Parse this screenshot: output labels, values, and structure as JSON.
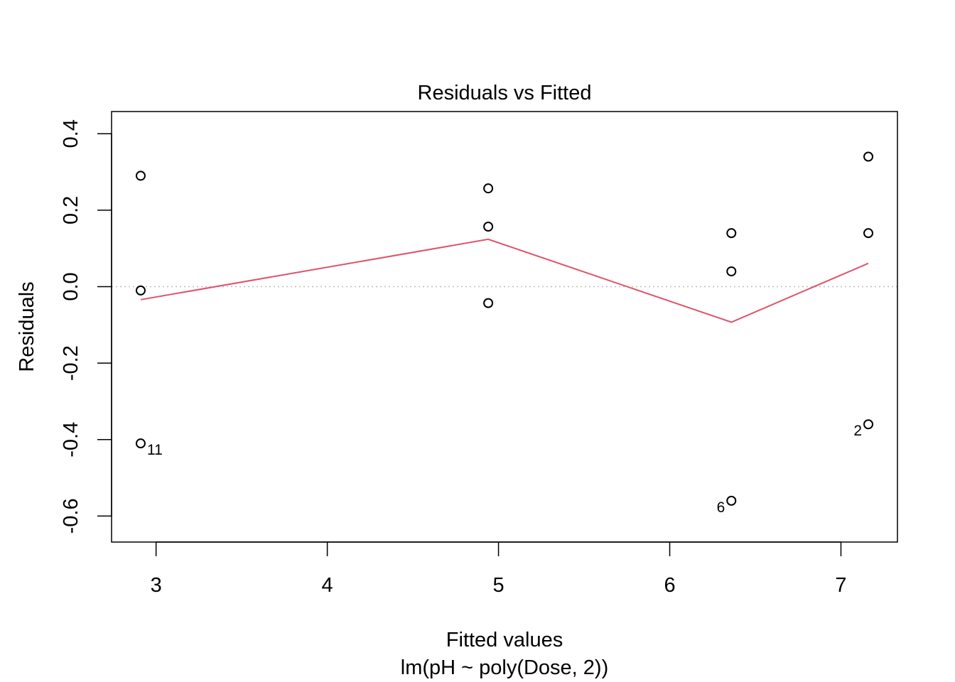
{
  "chart_data": {
    "type": "scatter",
    "title": "Residuals vs Fitted",
    "xlabel": "Fitted values",
    "xlabel_sub": "lm(pH ~ poly(Dose, 2))",
    "ylabel": "Residuals",
    "xlim": [
      2.74,
      7.33
    ],
    "ylim": [
      -0.668,
      0.458
    ],
    "x_ticks": [
      3,
      4,
      5,
      6,
      7
    ],
    "y_ticks": [
      -0.6,
      -0.4,
      -0.2,
      0.0,
      0.2,
      0.4
    ],
    "x_tick_labels": [
      "3",
      "4",
      "5",
      "6",
      "7"
    ],
    "y_tick_labels": [
      "-0.6",
      "-0.4",
      "-0.2",
      "0.0",
      "0.2",
      "0.4"
    ],
    "points": [
      {
        "x": 2.91,
        "y": 0.29
      },
      {
        "x": 2.91,
        "y": -0.01
      },
      {
        "x": 2.91,
        "y": -0.41,
        "label": "11",
        "label_pos": "below-right"
      },
      {
        "x": 4.94,
        "y": 0.257
      },
      {
        "x": 4.94,
        "y": 0.157
      },
      {
        "x": 4.94,
        "y": -0.043
      },
      {
        "x": 6.36,
        "y": 0.14
      },
      {
        "x": 6.36,
        "y": 0.04
      },
      {
        "x": 6.36,
        "y": -0.56,
        "label": "6",
        "label_pos": "below-left"
      },
      {
        "x": 7.16,
        "y": 0.34
      },
      {
        "x": 7.16,
        "y": 0.14
      },
      {
        "x": 7.16,
        "y": -0.36,
        "label": "2",
        "label_pos": "below-left"
      }
    ],
    "smooth_line": {
      "color": "#DF536B",
      "x": [
        2.91,
        4.94,
        6.36,
        7.16
      ],
      "y": [
        -0.034,
        0.124,
        -0.093,
        0.061
      ]
    },
    "reference_line": {
      "y": 0.0,
      "style": "dotted",
      "color": "#BEBEBE"
    },
    "grid": false,
    "legend": "none"
  }
}
